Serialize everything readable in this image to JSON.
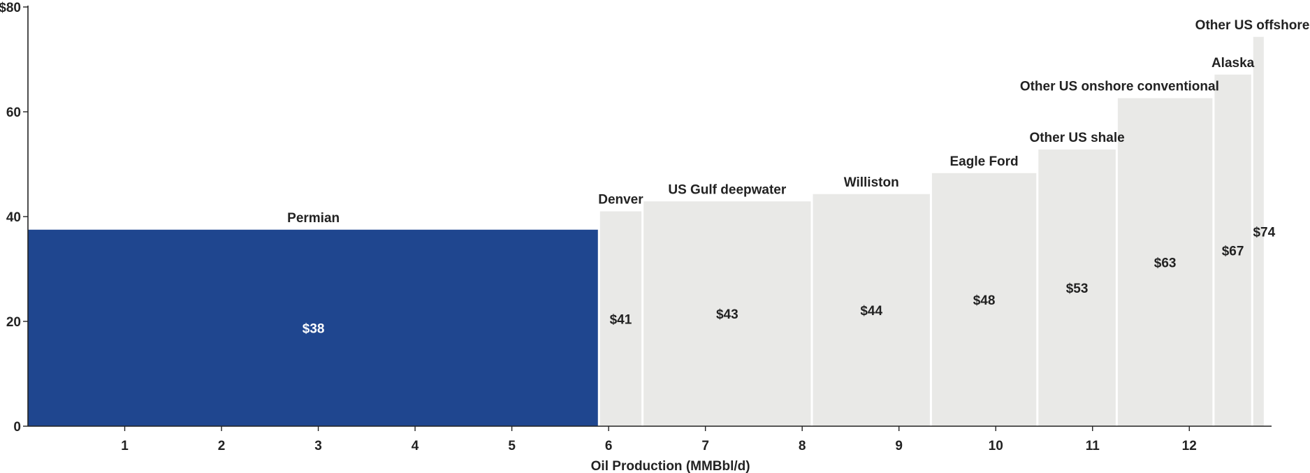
{
  "chart_data": {
    "type": "bar",
    "subtype": "variable-width cost curve",
    "xlabel": "Oil Production (MMBbl/d)",
    "ylabel": "",
    "xlim": [
      0,
      12.85
    ],
    "ylim": [
      0,
      80
    ],
    "x_ticks": [
      1,
      2,
      3,
      4,
      5,
      6,
      7,
      8,
      9,
      10,
      11,
      12
    ],
    "y_ticks": [
      0,
      20,
      40,
      60,
      80
    ],
    "y_tick_labels": [
      "0",
      "20",
      "40",
      "60",
      "$80"
    ],
    "grid": false,
    "colors": {
      "highlight": "#1f468f",
      "default": "#e9e9e7",
      "axis": "#222222",
      "text": "#222222"
    },
    "segments": [
      {
        "name": "Permian",
        "x_start": 0.0,
        "x_end": 5.9,
        "value": 37.5,
        "value_label": "$38",
        "highlight": true
      },
      {
        "name": "Denver",
        "x_start": 5.9,
        "x_end": 6.35,
        "value": 41,
        "value_label": "$41",
        "highlight": false
      },
      {
        "name": "US Gulf deepwater",
        "x_start": 6.35,
        "x_end": 8.1,
        "value": 42.9,
        "value_label": "$43",
        "highlight": false
      },
      {
        "name": "Williston",
        "x_start": 8.1,
        "x_end": 9.33,
        "value": 44.3,
        "value_label": "$44",
        "highlight": false
      },
      {
        "name": "Eagle Ford",
        "x_start": 9.33,
        "x_end": 10.43,
        "value": 48.3,
        "value_label": "$48",
        "highlight": false
      },
      {
        "name": "Other US shale",
        "x_start": 10.43,
        "x_end": 11.25,
        "value": 52.8,
        "value_label": "$53",
        "highlight": false
      },
      {
        "name": "Other US onshore conventional",
        "x_start": 11.25,
        "x_end": 12.25,
        "value": 62.6,
        "value_label": "$63",
        "highlight": false
      },
      {
        "name": "Alaska",
        "x_start": 12.25,
        "x_end": 12.65,
        "value": 67.1,
        "value_label": "$67",
        "highlight": false
      },
      {
        "name": "Other US offshore",
        "x_start": 12.65,
        "x_end": 12.78,
        "value": 74.3,
        "value_label": "$74",
        "highlight": false
      }
    ]
  }
}
